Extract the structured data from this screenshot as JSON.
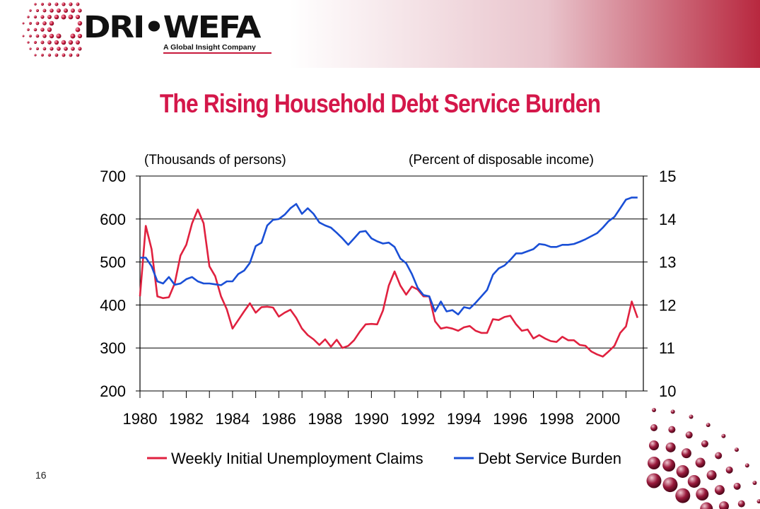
{
  "header": {
    "logo_name": "DRI•WEFA",
    "logo_tagline": "A Global Insight Company",
    "brand_color": "#c8193c"
  },
  "slide": {
    "title": "The Rising Household Debt Service Burden",
    "page_number": "16"
  },
  "chart_data": {
    "type": "line",
    "title": "The Rising Household Debt Service Burden",
    "left_axis_label": "(Thousands of persons)",
    "right_axis_label": "(Percent of disposable income)",
    "x_ticks": [
      "1980",
      "1982",
      "1984",
      "1986",
      "1988",
      "1990",
      "1992",
      "1994",
      "1996",
      "1998",
      "2000"
    ],
    "xlim": [
      1980,
      2001.75
    ],
    "ylim_left": [
      200,
      700
    ],
    "ylim_right": [
      10,
      15
    ],
    "y_ticks_left": [
      "200",
      "300",
      "400",
      "500",
      "600",
      "700"
    ],
    "y_ticks_right": [
      "10",
      "11",
      "12",
      "13",
      "14",
      "15"
    ],
    "grid": "horizontal",
    "legend_position": "bottom",
    "series": [
      {
        "name": "Weekly Initial Unemployment Claims",
        "axis": "left",
        "color": "#e0213f",
        "x": [
          1980.0,
          1980.25,
          1980.5,
          1980.75,
          1981.0,
          1981.25,
          1981.5,
          1981.75,
          1982.0,
          1982.25,
          1982.5,
          1982.75,
          1983.0,
          1983.25,
          1983.5,
          1983.75,
          1984.0,
          1984.25,
          1984.5,
          1984.75,
          1985.0,
          1985.25,
          1985.5,
          1985.75,
          1986.0,
          1986.25,
          1986.5,
          1986.75,
          1987.0,
          1987.25,
          1987.5,
          1987.75,
          1988.0,
          1988.25,
          1988.5,
          1988.75,
          1989.0,
          1989.25,
          1989.5,
          1989.75,
          1990.0,
          1990.25,
          1990.5,
          1990.75,
          1991.0,
          1991.25,
          1991.5,
          1991.75,
          1992.0,
          1992.25,
          1992.5,
          1992.75,
          1993.0,
          1993.25,
          1993.5,
          1993.75,
          1994.0,
          1994.25,
          1994.5,
          1994.75,
          1995.0,
          1995.25,
          1995.5,
          1995.75,
          1996.0,
          1996.25,
          1996.5,
          1996.75,
          1997.0,
          1997.25,
          1997.5,
          1997.75,
          1998.0,
          1998.25,
          1998.5,
          1998.75,
          1999.0,
          1999.25,
          1999.5,
          1999.75,
          2000.0,
          2000.25,
          2000.5,
          2000.75,
          2001.0,
          2001.25,
          2001.5
        ],
        "values": [
          420,
          584,
          530,
          420,
          416,
          418,
          450,
          515,
          540,
          590,
          622,
          590,
          490,
          467,
          420,
          390,
          345,
          365,
          385,
          404,
          382,
          395,
          396,
          394,
          373,
          382,
          389,
          370,
          345,
          330,
          320,
          307,
          320,
          303,
          319,
          300,
          305,
          318,
          338,
          355,
          356,
          355,
          387,
          445,
          478,
          445,
          424,
          443,
          436,
          420,
          420,
          362,
          345,
          348,
          345,
          340,
          348,
          351,
          340,
          335,
          335,
          367,
          365,
          372,
          375,
          355,
          340,
          343,
          322,
          330,
          322,
          316,
          314,
          326,
          318,
          318,
          307,
          305,
          292,
          285,
          280,
          292,
          305,
          335,
          350,
          408,
          370
        ]
      },
      {
        "name": "Debt Service Burden",
        "axis": "right",
        "color": "#1a4fd6",
        "x": [
          1980.0,
          1980.25,
          1980.5,
          1980.75,
          1981.0,
          1981.25,
          1981.5,
          1981.75,
          1982.0,
          1982.25,
          1982.5,
          1982.75,
          1983.0,
          1983.25,
          1983.5,
          1983.75,
          1984.0,
          1984.25,
          1984.5,
          1984.75,
          1985.0,
          1985.25,
          1985.5,
          1985.75,
          1986.0,
          1986.25,
          1986.5,
          1986.75,
          1987.0,
          1987.25,
          1987.5,
          1987.75,
          1988.0,
          1988.25,
          1988.5,
          1988.75,
          1989.0,
          1989.25,
          1989.5,
          1989.75,
          1990.0,
          1990.25,
          1990.5,
          1990.75,
          1991.0,
          1991.25,
          1991.5,
          1991.75,
          1992.0,
          1992.25,
          1992.5,
          1992.75,
          1993.0,
          1993.25,
          1993.5,
          1993.75,
          1994.0,
          1994.25,
          1994.5,
          1994.75,
          1995.0,
          1995.25,
          1995.5,
          1995.75,
          1996.0,
          1996.25,
          1996.5,
          1996.75,
          1997.0,
          1997.25,
          1997.5,
          1997.75,
          1998.0,
          1998.25,
          1998.5,
          1998.75,
          1999.0,
          1999.25,
          1999.5,
          1999.75,
          2000.0,
          2000.25,
          2000.5,
          2000.75,
          2001.0,
          2001.25,
          2001.5
        ],
        "values": [
          13.1,
          13.1,
          12.9,
          12.55,
          12.5,
          12.65,
          12.47,
          12.5,
          12.6,
          12.65,
          12.55,
          12.5,
          12.5,
          12.48,
          12.46,
          12.55,
          12.55,
          12.72,
          12.8,
          12.98,
          13.37,
          13.45,
          13.85,
          13.98,
          14.0,
          14.1,
          14.25,
          14.35,
          14.12,
          14.25,
          14.12,
          13.92,
          13.85,
          13.8,
          13.68,
          13.55,
          13.4,
          13.55,
          13.7,
          13.72,
          13.55,
          13.48,
          13.43,
          13.45,
          13.35,
          13.08,
          12.97,
          12.72,
          12.4,
          12.23,
          12.2,
          11.85,
          12.08,
          11.85,
          11.88,
          11.78,
          11.95,
          11.92,
          12.05,
          12.2,
          12.35,
          12.7,
          12.85,
          12.92,
          13.05,
          13.2,
          13.2,
          13.25,
          13.3,
          13.42,
          13.4,
          13.35,
          13.35,
          13.4,
          13.4,
          13.42,
          13.47,
          13.53,
          13.6,
          13.67,
          13.8,
          13.95,
          14.05,
          14.25,
          14.45,
          14.5,
          14.5
        ]
      }
    ]
  }
}
